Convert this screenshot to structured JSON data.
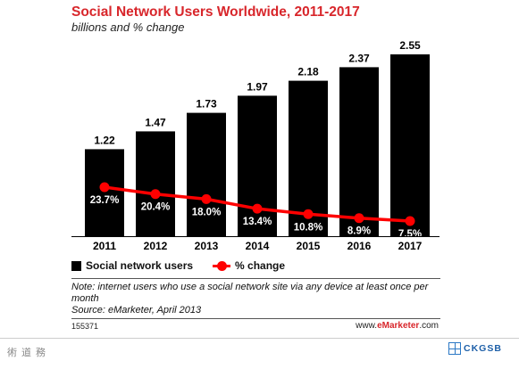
{
  "chart_data": {
    "type": "bar",
    "title": "Social Network Users Worldwide, 2011-2017",
    "subtitle": "billions and % change",
    "categories": [
      "2011",
      "2012",
      "2013",
      "2014",
      "2015",
      "2016",
      "2017"
    ],
    "series": [
      {
        "name": "Social network users",
        "type": "bar",
        "values": [
          1.22,
          1.47,
          1.73,
          1.97,
          2.18,
          2.37,
          2.55
        ],
        "labels": [
          "1.22",
          "1.47",
          "1.73",
          "1.97",
          "2.18",
          "2.37",
          "2.55"
        ],
        "color": "#000000"
      },
      {
        "name": "% change",
        "type": "line",
        "values": [
          23.7,
          20.4,
          18.0,
          13.4,
          10.8,
          8.9,
          7.5
        ],
        "labels": [
          "23.7%",
          "20.4%",
          "18.0%",
          "13.4%",
          "10.8%",
          "8.9%",
          "7.5%"
        ],
        "color": "#ff0000"
      }
    ],
    "ylim": [
      0,
      2.6
    ],
    "grid": false,
    "legend": "bottom-left"
  },
  "legend": {
    "bars": "Social network users",
    "line": "% change"
  },
  "note": "Note: internet users who use a social network site via any device at least once per month",
  "source": "Source: eMarketer, April 2013",
  "chart_id": "155371",
  "brand": {
    "prefix": "www.",
    "name": "eMarketer",
    "suffix": ".com"
  },
  "slide_footer": {
    "left": "術道務",
    "logo": "CKGSB"
  },
  "colors": {
    "title": "#d8262b",
    "bar": "#000000",
    "line": "#ff0000"
  }
}
